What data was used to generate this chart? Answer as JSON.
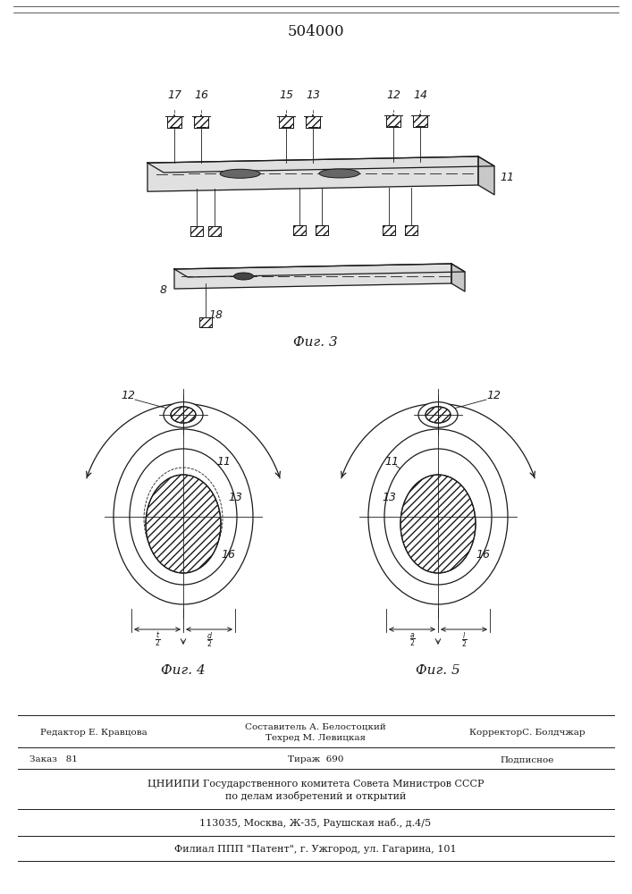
{
  "patent_number": "504000",
  "bg": "#ffffff",
  "lc": "#1a1a1a",
  "fig3_label": "Фиг. 3",
  "fig4_label": "Фиг. 4",
  "fig5_label": "Фиг. 5",
  "footer": {
    "line1_left": "Редактор Е. Кравцова",
    "line1_center_top": "Составитель А. Белостоцкий",
    "line1_center_bot": "Техред М. Левицкая",
    "line1_right": "КорректорС. Болдчжар",
    "line2_left": "Заказ   81",
    "line2_center": "Тираж  690",
    "line2_right": "Подписное",
    "line3": "ЦНИИПИ Государственного комитета Совета Министров СССР",
    "line4": "по делам изобретений и открытий",
    "line5": "113035, Москва, Ж-35, Раушская наб., д.4/5",
    "line6": "Филиал ППП \"Патент\", г. Ужгород, ул. Гагарина, 101"
  }
}
